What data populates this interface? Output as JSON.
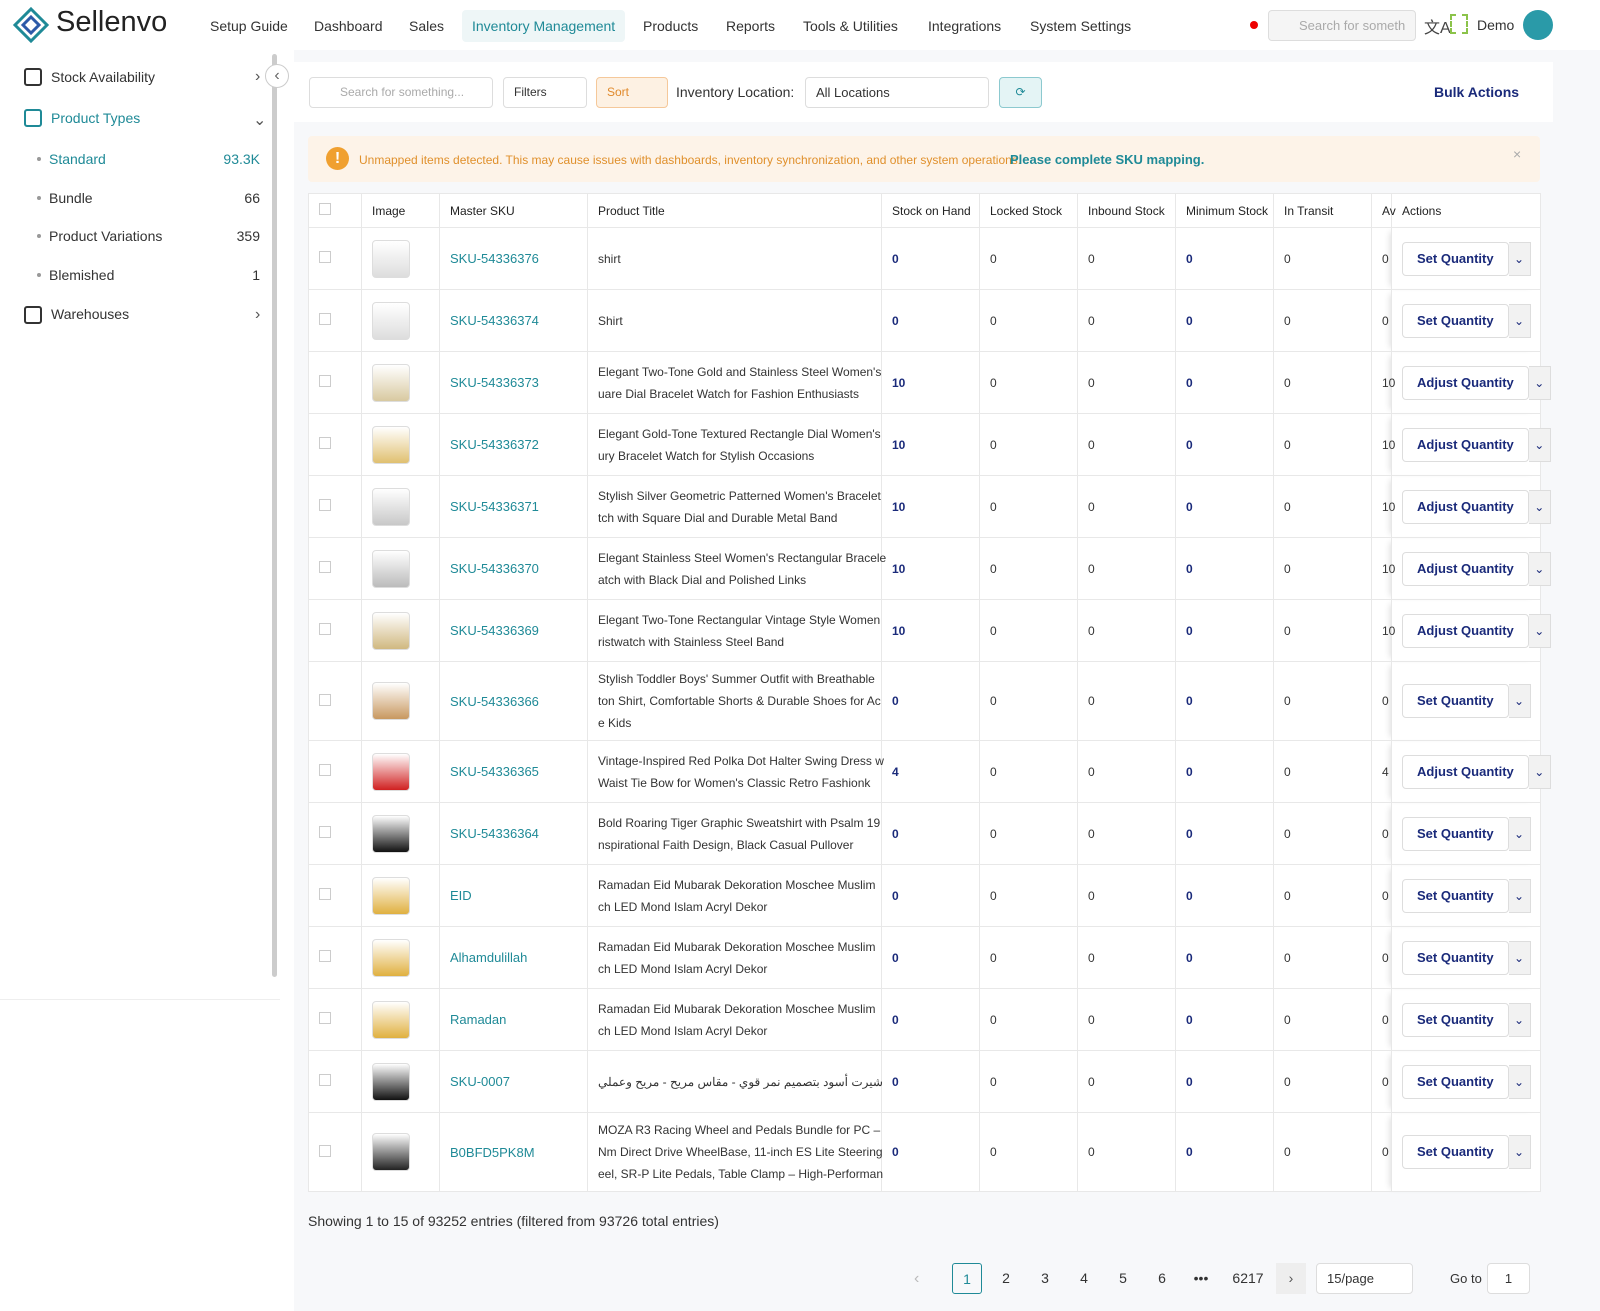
{
  "header": {
    "logo": "Sellenvo",
    "nav": [
      "Setup Guide",
      "Dashboard",
      "Sales",
      "Inventory Management",
      "Products",
      "Reports",
      "Tools & Utilities",
      "Integrations",
      "System Settings"
    ],
    "active_nav": 3,
    "search_placeholder": "Search for someth",
    "user": "Demo"
  },
  "sidebar": {
    "stock_availability": "Stock Availability",
    "product_types": "Product Types",
    "types": [
      {
        "label": "Standard",
        "count": "93.3K"
      },
      {
        "label": "Bundle",
        "count": 66
      },
      {
        "label": "Product Variations",
        "count": 359
      },
      {
        "label": "Blemished",
        "count": 1
      }
    ],
    "warehouses": "Warehouses"
  },
  "toolbar": {
    "search_placeholder": "Search for something...",
    "filters": "Filters",
    "sort": "Sort",
    "location_label": "Inventory Location:",
    "location_value": "All Locations",
    "bulk_actions": "Bulk Actions"
  },
  "alert": {
    "message": "Unmapped items detected. This may cause issues with dashboards, inventory synchronization, and other system operations.",
    "link": "Please complete SKU mapping."
  },
  "table": {
    "columns": [
      "Image",
      "Master SKU",
      "Product Title",
      "Stock on Hand",
      "Locked Stock",
      "Inbound Stock",
      "Minimum Stock",
      "In Transit",
      "Av",
      "Actions"
    ],
    "rows": [
      {
        "sku": "SKU-54336376",
        "title": [
          "shirt"
        ],
        "stock": [
          0,
          0,
          0,
          0,
          0,
          0
        ],
        "action": "Set Quantity"
      },
      {
        "sku": "SKU-54336374",
        "title": [
          "Shirt"
        ],
        "stock": [
          0,
          0,
          0,
          0,
          0,
          0
        ],
        "action": "Set Quantity"
      },
      {
        "sku": "SKU-54336373",
        "title": [
          "Elegant Two-Tone Gold and Stainless Steel Women's",
          "uare Dial Bracelet Watch for Fashion Enthusiasts"
        ],
        "stock": [
          10,
          0,
          0,
          0,
          0,
          10
        ],
        "action": "Adjust Quantity"
      },
      {
        "sku": "SKU-54336372",
        "title": [
          "Elegant Gold-Tone Textured Rectangle Dial Women's",
          "ury Bracelet Watch for Stylish Occasions"
        ],
        "stock": [
          10,
          0,
          0,
          0,
          0,
          10
        ],
        "action": "Adjust Quantity"
      },
      {
        "sku": "SKU-54336371",
        "title": [
          "Stylish Silver Geometric Patterned Women's Bracelet",
          "tch with Square Dial and Durable Metal Band"
        ],
        "stock": [
          10,
          0,
          0,
          0,
          0,
          10
        ],
        "action": "Adjust Quantity"
      },
      {
        "sku": "SKU-54336370",
        "title": [
          "Elegant Stainless Steel Women's Rectangular Bracele",
          "atch with Black Dial and Polished Links"
        ],
        "stock": [
          10,
          0,
          0,
          0,
          0,
          10
        ],
        "action": "Adjust Quantity"
      },
      {
        "sku": "SKU-54336369",
        "title": [
          "Elegant Two-Tone Rectangular Vintage Style Women",
          "ristwatch with Stainless Steel Band"
        ],
        "stock": [
          10,
          0,
          0,
          0,
          0,
          10
        ],
        "action": "Adjust Quantity"
      },
      {
        "sku": "SKU-54336366",
        "title": [
          "Stylish Toddler Boys' Summer Outfit with Breathable",
          "ton Shirt, Comfortable Shorts & Durable Shoes for Ac",
          "e Kids"
        ],
        "stock": [
          0,
          0,
          0,
          0,
          0,
          0
        ],
        "action": "Set Quantity"
      },
      {
        "sku": "SKU-54336365",
        "title": [
          "Vintage-Inspired Red Polka Dot Halter Swing Dress w",
          "Waist Tie Bow for Women's Classic Retro Fashionk"
        ],
        "stock": [
          4,
          0,
          0,
          0,
          0,
          4
        ],
        "action": "Adjust Quantity"
      },
      {
        "sku": "SKU-54336364",
        "title": [
          "Bold Roaring Tiger Graphic Sweatshirt with Psalm 19",
          "nspirational Faith Design, Black Casual Pullover"
        ],
        "stock": [
          0,
          0,
          0,
          0,
          0,
          0
        ],
        "action": "Set Quantity"
      },
      {
        "sku": "EID",
        "title": [
          "Ramadan Eid Mubarak Dekoration Moschee Muslim",
          "ch LED Mond Islam Acryl Dekor"
        ],
        "stock": [
          0,
          0,
          0,
          0,
          0,
          0
        ],
        "action": "Set Quantity"
      },
      {
        "sku": "Alhamdulillah",
        "title": [
          "Ramadan Eid Mubarak Dekoration Moschee Muslim",
          "ch LED Mond Islam Acryl Dekor"
        ],
        "stock": [
          0,
          0,
          0,
          0,
          0,
          0
        ],
        "action": "Set Quantity"
      },
      {
        "sku": "Ramadan",
        "title": [
          "Ramadan Eid Mubarak Dekoration Moschee Muslim",
          "ch LED Mond Islam Acryl Dekor"
        ],
        "stock": [
          0,
          0,
          0,
          0,
          0,
          0
        ],
        "action": "Set Quantity"
      },
      {
        "sku": "SKU-0007",
        "title": [
          "شيرت أسود بتصميم نمر قوي - مقاس مريح - مريح وعملي"
        ],
        "stock": [
          0,
          0,
          0,
          0,
          0,
          0
        ],
        "action": "Set Quantity"
      },
      {
        "sku": "B0BFD5PK8M",
        "title": [
          "MOZA R3 Racing Wheel and Pedals Bundle for PC –",
          "Nm Direct Drive WheelBase, 11-inch ES Lite Steering",
          "eel, SR-P Lite Pedals, Table Clamp – High-Performan"
        ],
        "stock": [
          0,
          0,
          0,
          0,
          0,
          0
        ],
        "action": "Set Quantity"
      }
    ]
  },
  "pagination": {
    "summary": "Showing 1 to 15 of 93252 entries (filtered from 93726 total entries)",
    "pages": [
      1,
      2,
      3,
      4,
      5,
      6,
      "•••",
      6217
    ],
    "page_size": "15/page",
    "goto_label": "Go to",
    "goto_value": 1
  }
}
